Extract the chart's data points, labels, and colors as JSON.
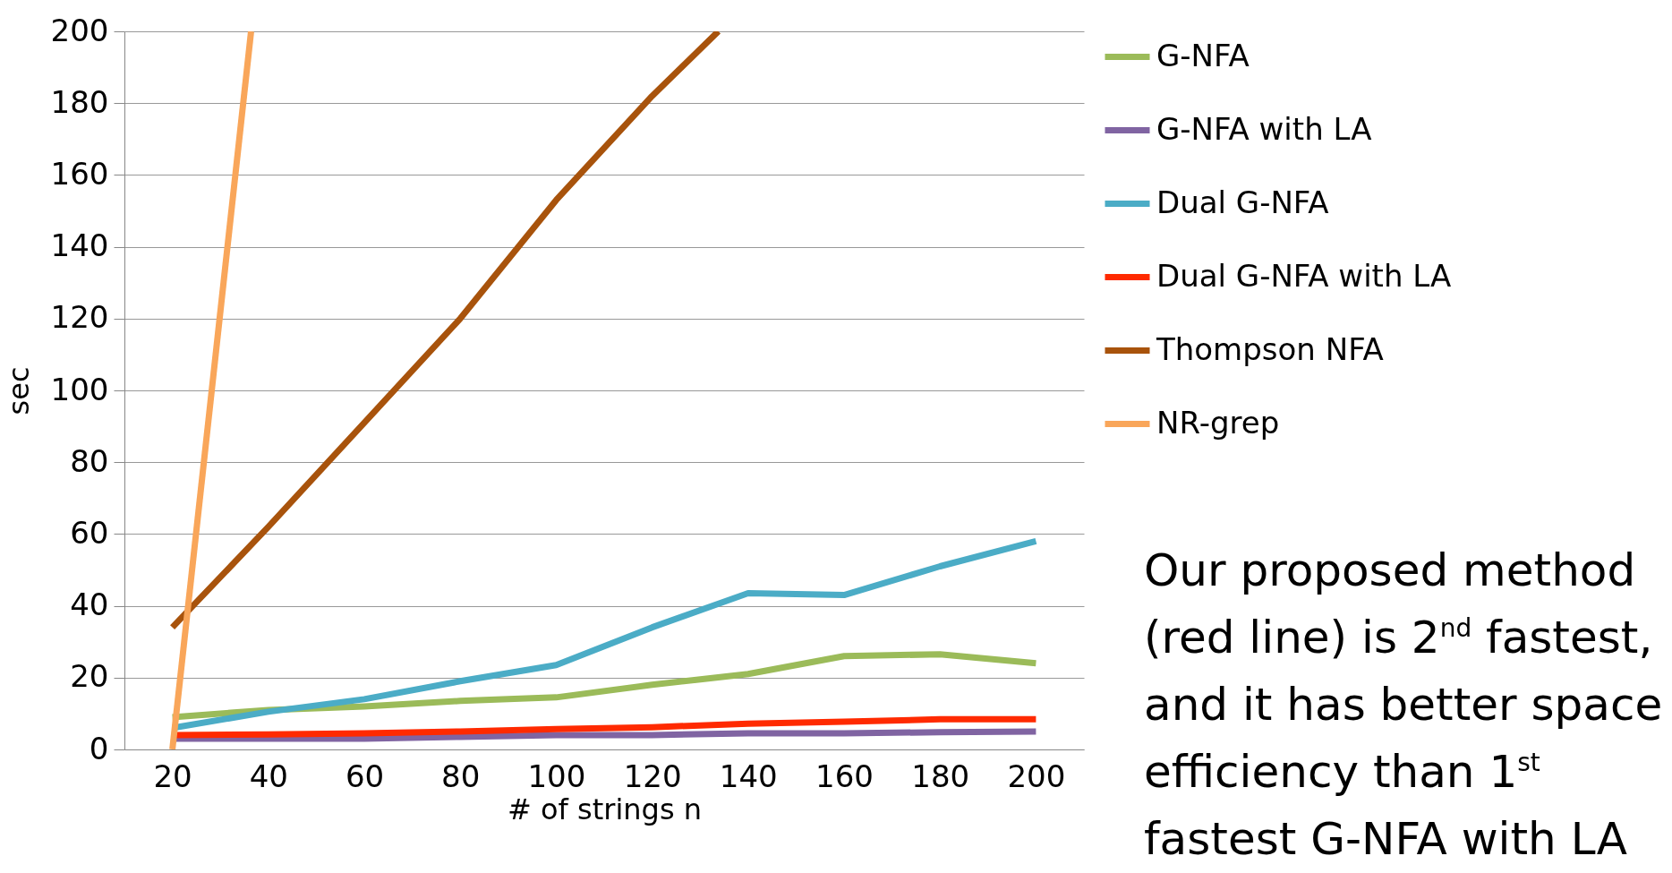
{
  "chart_data": {
    "type": "line",
    "xlabel": "# of strings n",
    "ylabel": "sec",
    "x": [
      20,
      40,
      60,
      80,
      100,
      120,
      140,
      160,
      180,
      200
    ],
    "xlim": [
      10,
      210
    ],
    "xticks": [
      20,
      40,
      60,
      80,
      100,
      120,
      140,
      160,
      180,
      200
    ],
    "ylim": [
      0,
      200
    ],
    "yticks": [
      0,
      20,
      40,
      60,
      80,
      100,
      120,
      140,
      160,
      180,
      200
    ],
    "grid": "y",
    "legend": "top right",
    "marker": "none",
    "line_style": "solid",
    "series": [
      {
        "name": "G-NFA",
        "color": "#9bbb59",
        "values": [
          9,
          11,
          12,
          13.5,
          14.5,
          18,
          21,
          26,
          26.5,
          24
        ]
      },
      {
        "name": "G-NFA with LA",
        "color": "#8064a2",
        "values": [
          3,
          3,
          3,
          3.5,
          4,
          4,
          4.5,
          4.5,
          4.8,
          5
        ]
      },
      {
        "name": "Dual G-NFA",
        "color": "#4bacc6",
        "values": [
          6,
          10.5,
          14,
          19,
          23.5,
          34,
          43.5,
          43,
          51,
          58
        ]
      },
      {
        "name": "Dual G-NFA with LA",
        "color": "#ff2a00",
        "values": [
          4,
          4.2,
          4.5,
          5,
          5.7,
          6.2,
          7.2,
          7.7,
          8.4,
          8.4
        ]
      },
      {
        "name": "Thompson NFA",
        "color": "#a8530c",
        "x": [
          20,
          40,
          60,
          80,
          100,
          120,
          133.8
        ],
        "values": [
          34,
          62,
          91,
          120,
          153,
          182,
          200
        ]
      },
      {
        "name": "NR-grep",
        "color": "#f9a65a",
        "x": [
          20,
          36.4
        ],
        "values": [
          0,
          200
        ]
      }
    ],
    "annotations": [
      "Our proposed method\n(red line) is 2$^{nd}$ fastest,\nand it has better space\nefficiency than 1$^{st}$\nfastest G-NFA with LA"
    ]
  }
}
